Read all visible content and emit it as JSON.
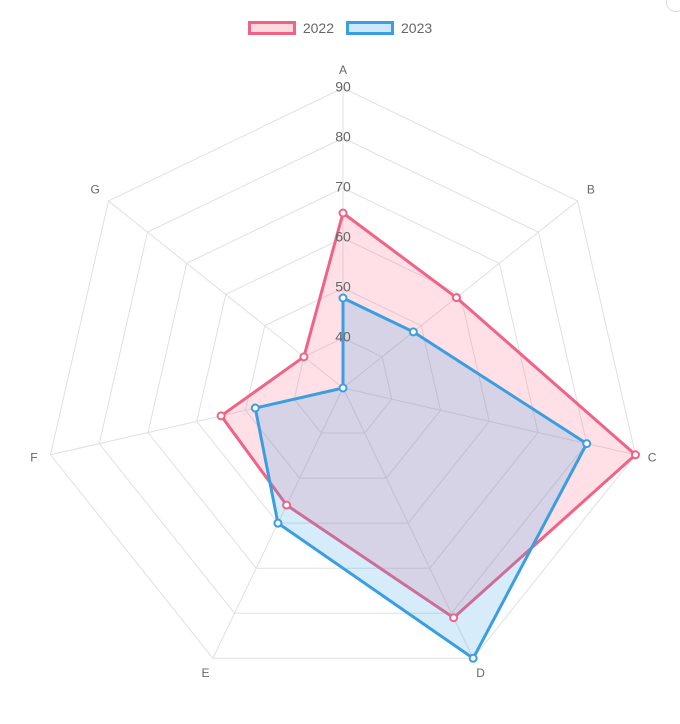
{
  "chart_data": {
    "type": "radar",
    "labels": [
      "A",
      "B",
      "C",
      "D",
      "E",
      "F",
      "G"
    ],
    "ticks": [
      40,
      50,
      60,
      70,
      80,
      90
    ],
    "range": [
      30,
      90
    ],
    "legend_position": "top",
    "series": [
      {
        "name": "2022",
        "values": [
          65,
          59,
          90,
          81,
          56,
          55,
          40
        ],
        "border_color": "#f06386",
        "fill_color": "rgba(255,99,132,0.2)"
      },
      {
        "name": "2023",
        "values": [
          48,
          48,
          80,
          90,
          60,
          48,
          30
        ],
        "border_color": "#3a9ee0",
        "fill_color": "rgba(54,162,235,0.2)"
      }
    ],
    "grid_color": "#e0e0e0",
    "tick_label_color": "#666666",
    "point_label_color": "#666666"
  }
}
